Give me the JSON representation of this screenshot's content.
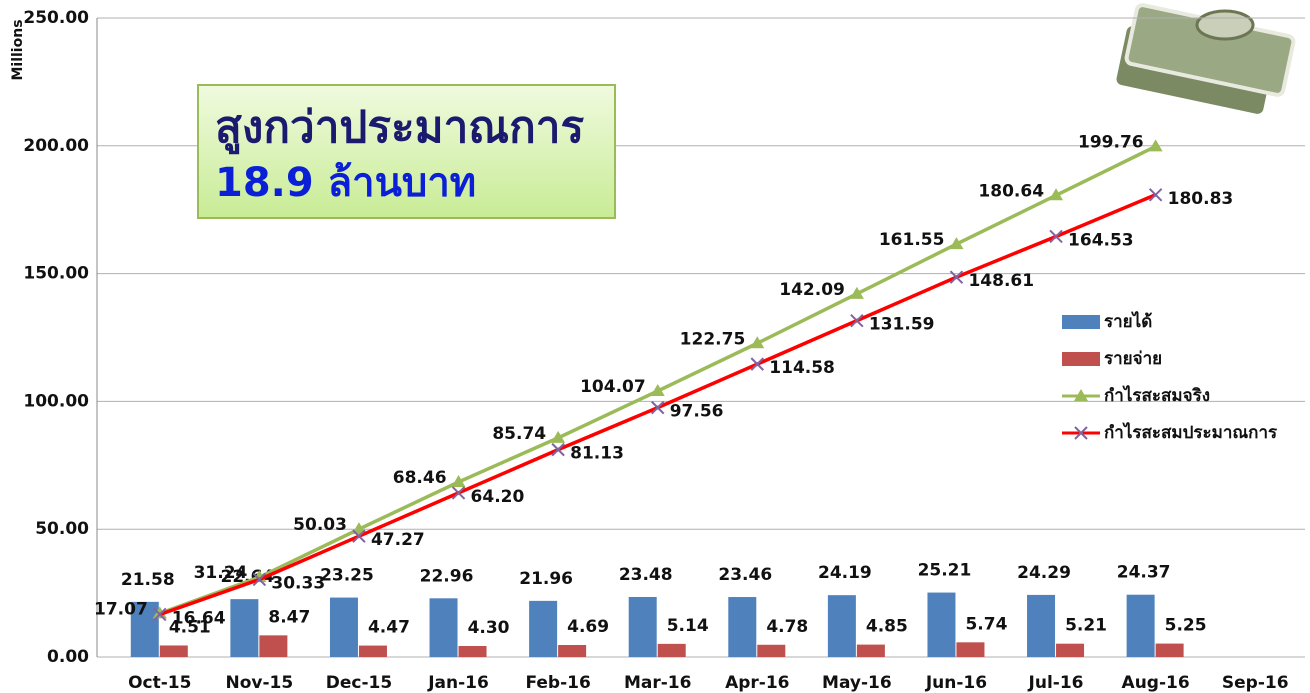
{
  "chart_data": {
    "type": "bar-line",
    "y_axis_label": "Millions",
    "annotation": [
      "สูงกว่าประมาณการ",
      "18.9 ล้านบาท"
    ],
    "categories": [
      "Oct-15",
      "Nov-15",
      "Dec-15",
      "Jan-16",
      "Feb-16",
      "Mar-16",
      "Apr-16",
      "May-16",
      "Jun-16",
      "Jul-16",
      "Aug-16",
      "Sep-16"
    ],
    "ylim": [
      0,
      250
    ],
    "yticks": [
      {
        "value": 0,
        "label": "0.00"
      },
      {
        "value": 50,
        "label": "50.00"
      },
      {
        "value": 100,
        "label": "100.00"
      },
      {
        "value": 150,
        "label": "150.00"
      },
      {
        "value": 200,
        "label": "200.00"
      },
      {
        "value": 250,
        "label": "250.00"
      }
    ],
    "grid": true,
    "series": [
      {
        "name": "รายได้",
        "type": "bar",
        "color": "#4f81bd",
        "values": [
          21.58,
          22.64,
          23.25,
          22.96,
          21.96,
          23.48,
          23.46,
          24.19,
          25.21,
          24.29,
          24.37,
          null
        ],
        "value_labels": [
          "21.58",
          "22.64",
          "23.25",
          "22.96",
          "21.96",
          "23.48",
          "23.46",
          "24.19",
          "25.21",
          "24.29",
          "24.37",
          null
        ]
      },
      {
        "name": "รายจ่าย",
        "type": "bar",
        "color": "#c0504d",
        "values": [
          4.51,
          8.47,
          4.47,
          4.3,
          4.69,
          5.14,
          4.78,
          4.85,
          5.74,
          5.21,
          5.25,
          null
        ],
        "value_labels": [
          "4.51",
          "8.47",
          "4.47",
          "4.30",
          "4.69",
          "5.14",
          "4.78",
          "4.85",
          "5.74",
          "5.21",
          "5.25",
          null
        ]
      },
      {
        "name": "กำไรสะสมจริง",
        "type": "line",
        "color": "#9bbb59",
        "marker": "triangle",
        "values": [
          17.07,
          31.24,
          50.03,
          68.46,
          85.74,
          104.07,
          122.75,
          142.09,
          161.55,
          180.64,
          199.76,
          null
        ],
        "value_labels": [
          "17.07",
          "31.24",
          "50.03",
          "68.46",
          "85.74",
          "104.07",
          "122.75",
          "142.09",
          "161.55",
          "180.64",
          "199.76",
          null
        ]
      },
      {
        "name": "กำไรสะสมประมาณการ",
        "type": "line",
        "color": "#ff0000",
        "marker": "x",
        "marker_color": "#8064a2",
        "values": [
          16.64,
          30.33,
          47.27,
          64.2,
          81.13,
          97.56,
          114.58,
          131.59,
          148.61,
          164.53,
          180.83,
          null
        ],
        "value_labels": [
          "16.64",
          "30.33",
          "47.27",
          "64.20",
          "81.13",
          "97.56",
          "114.58",
          "131.59",
          "148.61",
          "164.53",
          "180.83",
          null
        ]
      }
    ]
  }
}
